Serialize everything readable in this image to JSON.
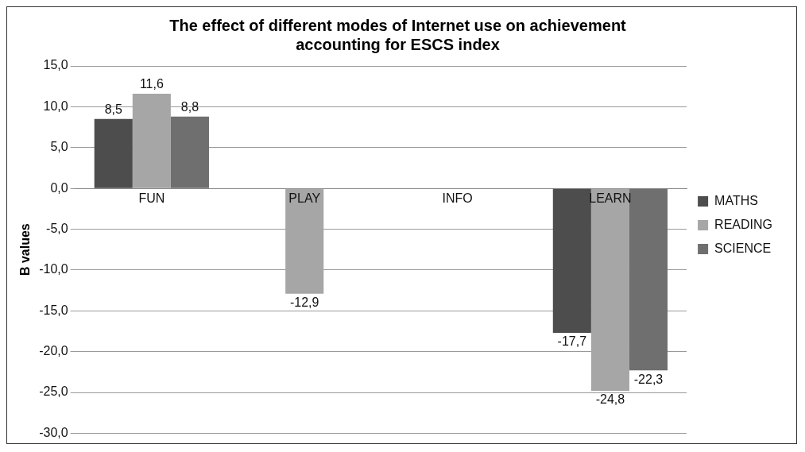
{
  "chart_data": {
    "type": "bar",
    "title": "The effect of different modes of Internet use on achievement accounting for ESCS index",
    "ylabel": "B values",
    "categories": [
      "FUN",
      "PLAY",
      "INFO",
      "LEARN"
    ],
    "series": [
      {
        "name": "MATHS",
        "color": "#4d4d4d",
        "values": [
          8.5,
          null,
          null,
          -17.7
        ],
        "value_labels": [
          "8,5",
          null,
          null,
          "-17,7"
        ]
      },
      {
        "name": "READING",
        "color": "#a6a6a6",
        "values": [
          11.6,
          -12.9,
          null,
          -24.8
        ],
        "value_labels": [
          "11,6",
          "-12,9",
          null,
          "-24,8"
        ]
      },
      {
        "name": "SCIENCE",
        "color": "#6f6f6f",
        "values": [
          8.8,
          null,
          null,
          -22.3
        ],
        "value_labels": [
          "8,8",
          null,
          null,
          "-22,3"
        ]
      }
    ],
    "ylim": [
      -30,
      15
    ],
    "yticks": [
      {
        "value": -30,
        "label": "-30,0"
      },
      {
        "value": -25,
        "label": "-25,0"
      },
      {
        "value": -20,
        "label": "-20,0"
      },
      {
        "value": -15,
        "label": "-15,0"
      },
      {
        "value": -10,
        "label": "-10,0"
      },
      {
        "value": -5,
        "label": "-5,0"
      },
      {
        "value": 0,
        "label": "0,0"
      },
      {
        "value": 5,
        "label": "5,0"
      },
      {
        "value": 10,
        "label": "10,0"
      },
      {
        "value": 15,
        "label": "15,0"
      }
    ],
    "grid": "y",
    "legend": "right"
  }
}
